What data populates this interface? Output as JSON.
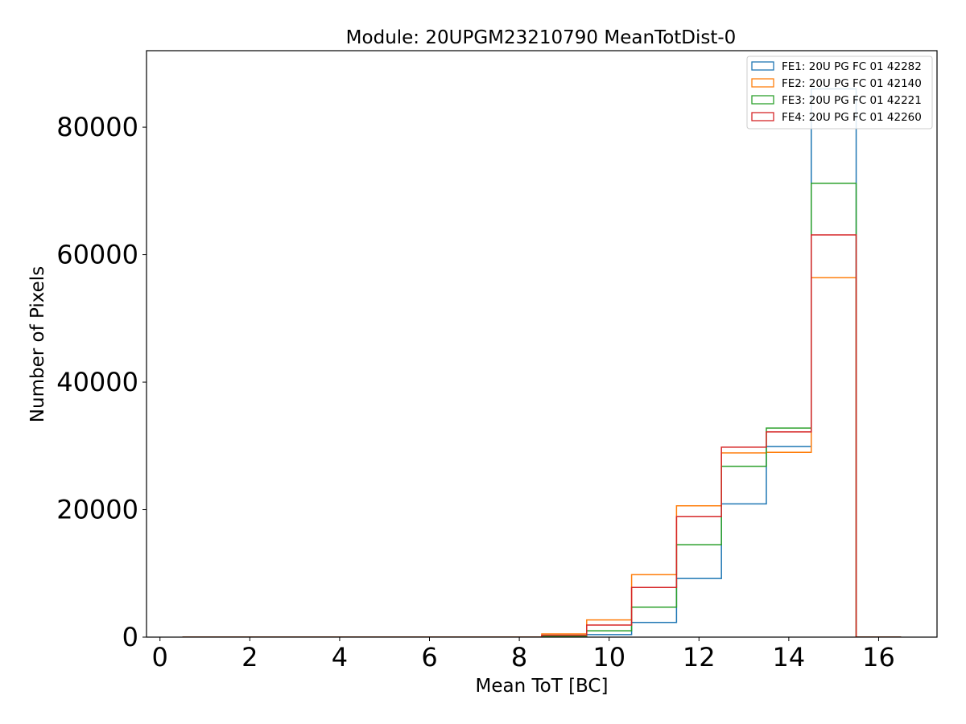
{
  "chart_data": {
    "type": "histogram",
    "title": "Module: 20UPGM23210790 MeanTotDist-0",
    "xlabel": "Mean ToT [BC]",
    "ylabel": "Number of Pixels",
    "xlim": [
      -0.3,
      17.3
    ],
    "ylim": [
      0,
      92000
    ],
    "xticks": [
      0,
      2,
      4,
      6,
      8,
      10,
      12,
      14,
      16
    ],
    "yticks": [
      0,
      20000,
      40000,
      60000,
      80000
    ],
    "grid": false,
    "legend_position": "top-right",
    "bin_edges": [
      0.5,
      1.5,
      2.5,
      3.5,
      4.5,
      5.5,
      6.5,
      7.5,
      8.5,
      9.5,
      10.5,
      11.5,
      12.5,
      13.5,
      14.5,
      15.5,
      16.5
    ],
    "series": [
      {
        "name": "FE1: 20U PG FC 01 42282",
        "color": "#1f77b4",
        "values": [
          0,
          0,
          0,
          0,
          0,
          0,
          0,
          0,
          100,
          400,
          2300,
          9200,
          20900,
          29900,
          86000,
          0
        ]
      },
      {
        "name": "FE2: 20U PG FC 01 42140",
        "color": "#ff7f0e",
        "values": [
          0,
          0,
          0,
          0,
          0,
          0,
          0,
          0,
          500,
          2700,
          9800,
          20600,
          28900,
          29000,
          56400,
          0
        ]
      },
      {
        "name": "FE3: 20U PG FC 01 42221",
        "color": "#2ca02c",
        "values": [
          0,
          0,
          0,
          0,
          0,
          0,
          0,
          0,
          150,
          1000,
          4700,
          14500,
          26800,
          32800,
          71200,
          0
        ]
      },
      {
        "name": "FE4: 20U PG FC 01 42260",
        "color": "#d62728",
        "values": [
          0,
          0,
          0,
          0,
          0,
          0,
          0,
          0,
          300,
          1900,
          7800,
          18900,
          29800,
          32200,
          63100,
          0
        ]
      }
    ]
  }
}
